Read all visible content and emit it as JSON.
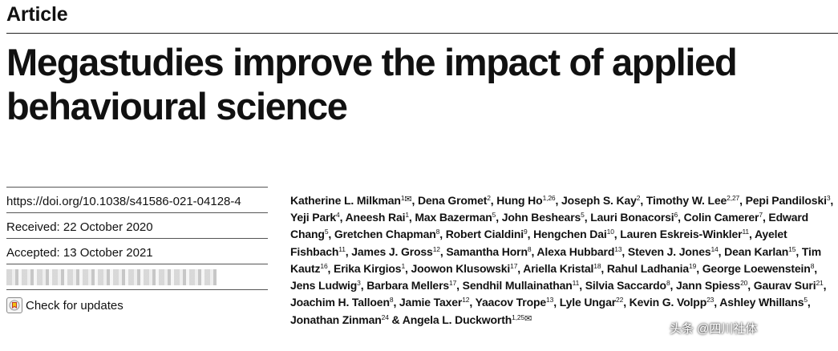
{
  "header": {
    "article_type": "Article",
    "title": "Megastudies improve the impact of applied behavioural science"
  },
  "meta": {
    "doi": "https://doi.org/10.1038/s41586-021-04128-4",
    "received": "Received: 22 October 2020",
    "accepted": "Accepted: 13 October 2021",
    "check_updates": "Check for updates"
  },
  "authors": [
    {
      "name": "Katherine L. Milkman",
      "aff": "1",
      "mail": true
    },
    {
      "name": "Dena Gromet",
      "aff": "2"
    },
    {
      "name": "Hung Ho",
      "aff": "1,26"
    },
    {
      "name": "Joseph S. Kay",
      "aff": "2"
    },
    {
      "name": "Timothy W. Lee",
      "aff": "2,27"
    },
    {
      "name": "Pepi Pandiloski",
      "aff": "3"
    },
    {
      "name": "Yeji Park",
      "aff": "4"
    },
    {
      "name": "Aneesh Rai",
      "aff": "1"
    },
    {
      "name": "Max Bazerman",
      "aff": "5"
    },
    {
      "name": "John Beshears",
      "aff": "5"
    },
    {
      "name": "Lauri Bonacorsi",
      "aff": "6"
    },
    {
      "name": "Colin Camerer",
      "aff": "7"
    },
    {
      "name": "Edward Chang",
      "aff": "5"
    },
    {
      "name": "Gretchen Chapman",
      "aff": "8"
    },
    {
      "name": "Robert Cialdini",
      "aff": "9"
    },
    {
      "name": "Hengchen Dai",
      "aff": "10"
    },
    {
      "name": "Lauren Eskreis-Winkler",
      "aff": "11"
    },
    {
      "name": "Ayelet Fishbach",
      "aff": "11"
    },
    {
      "name": "James J. Gross",
      "aff": "12"
    },
    {
      "name": "Samantha Horn",
      "aff": "8"
    },
    {
      "name": "Alexa Hubbard",
      "aff": "13"
    },
    {
      "name": "Steven J. Jones",
      "aff": "14"
    },
    {
      "name": "Dean Karlan",
      "aff": "15"
    },
    {
      "name": "Tim Kautz",
      "aff": "16"
    },
    {
      "name": "Erika Kirgios",
      "aff": "1"
    },
    {
      "name": "Joowon Klusowski",
      "aff": "17"
    },
    {
      "name": "Ariella Kristal",
      "aff": "18"
    },
    {
      "name": "Rahul Ladhania",
      "aff": "19"
    },
    {
      "name": "George Loewenstein",
      "aff": "8"
    },
    {
      "name": "Jens Ludwig",
      "aff": "3"
    },
    {
      "name": "Barbara Mellers",
      "aff": "17"
    },
    {
      "name": "Sendhil Mullainathan",
      "aff": "11"
    },
    {
      "name": "Silvia Saccardo",
      "aff": "8"
    },
    {
      "name": "Jann Spiess",
      "aff": "20"
    },
    {
      "name": "Gaurav Suri",
      "aff": "21"
    },
    {
      "name": "Joachim H. Talloen",
      "aff": "8"
    },
    {
      "name": "Jamie Taxer",
      "aff": "12"
    },
    {
      "name": "Yaacov Trope",
      "aff": "13"
    },
    {
      "name": "Lyle Ungar",
      "aff": "22"
    },
    {
      "name": "Kevin G. Volpp",
      "aff": "23",
      "partial": true
    },
    {
      "name": "Ashley Whillans",
      "aff": "5"
    },
    {
      "name": "Jonathan Zinman",
      "aff": "24"
    },
    {
      "name": "Angela L. Duckworth",
      "aff": "1,25",
      "mail": true,
      "last": true
    }
  ],
  "watermark": {
    "text": "头条 @四川社体"
  }
}
